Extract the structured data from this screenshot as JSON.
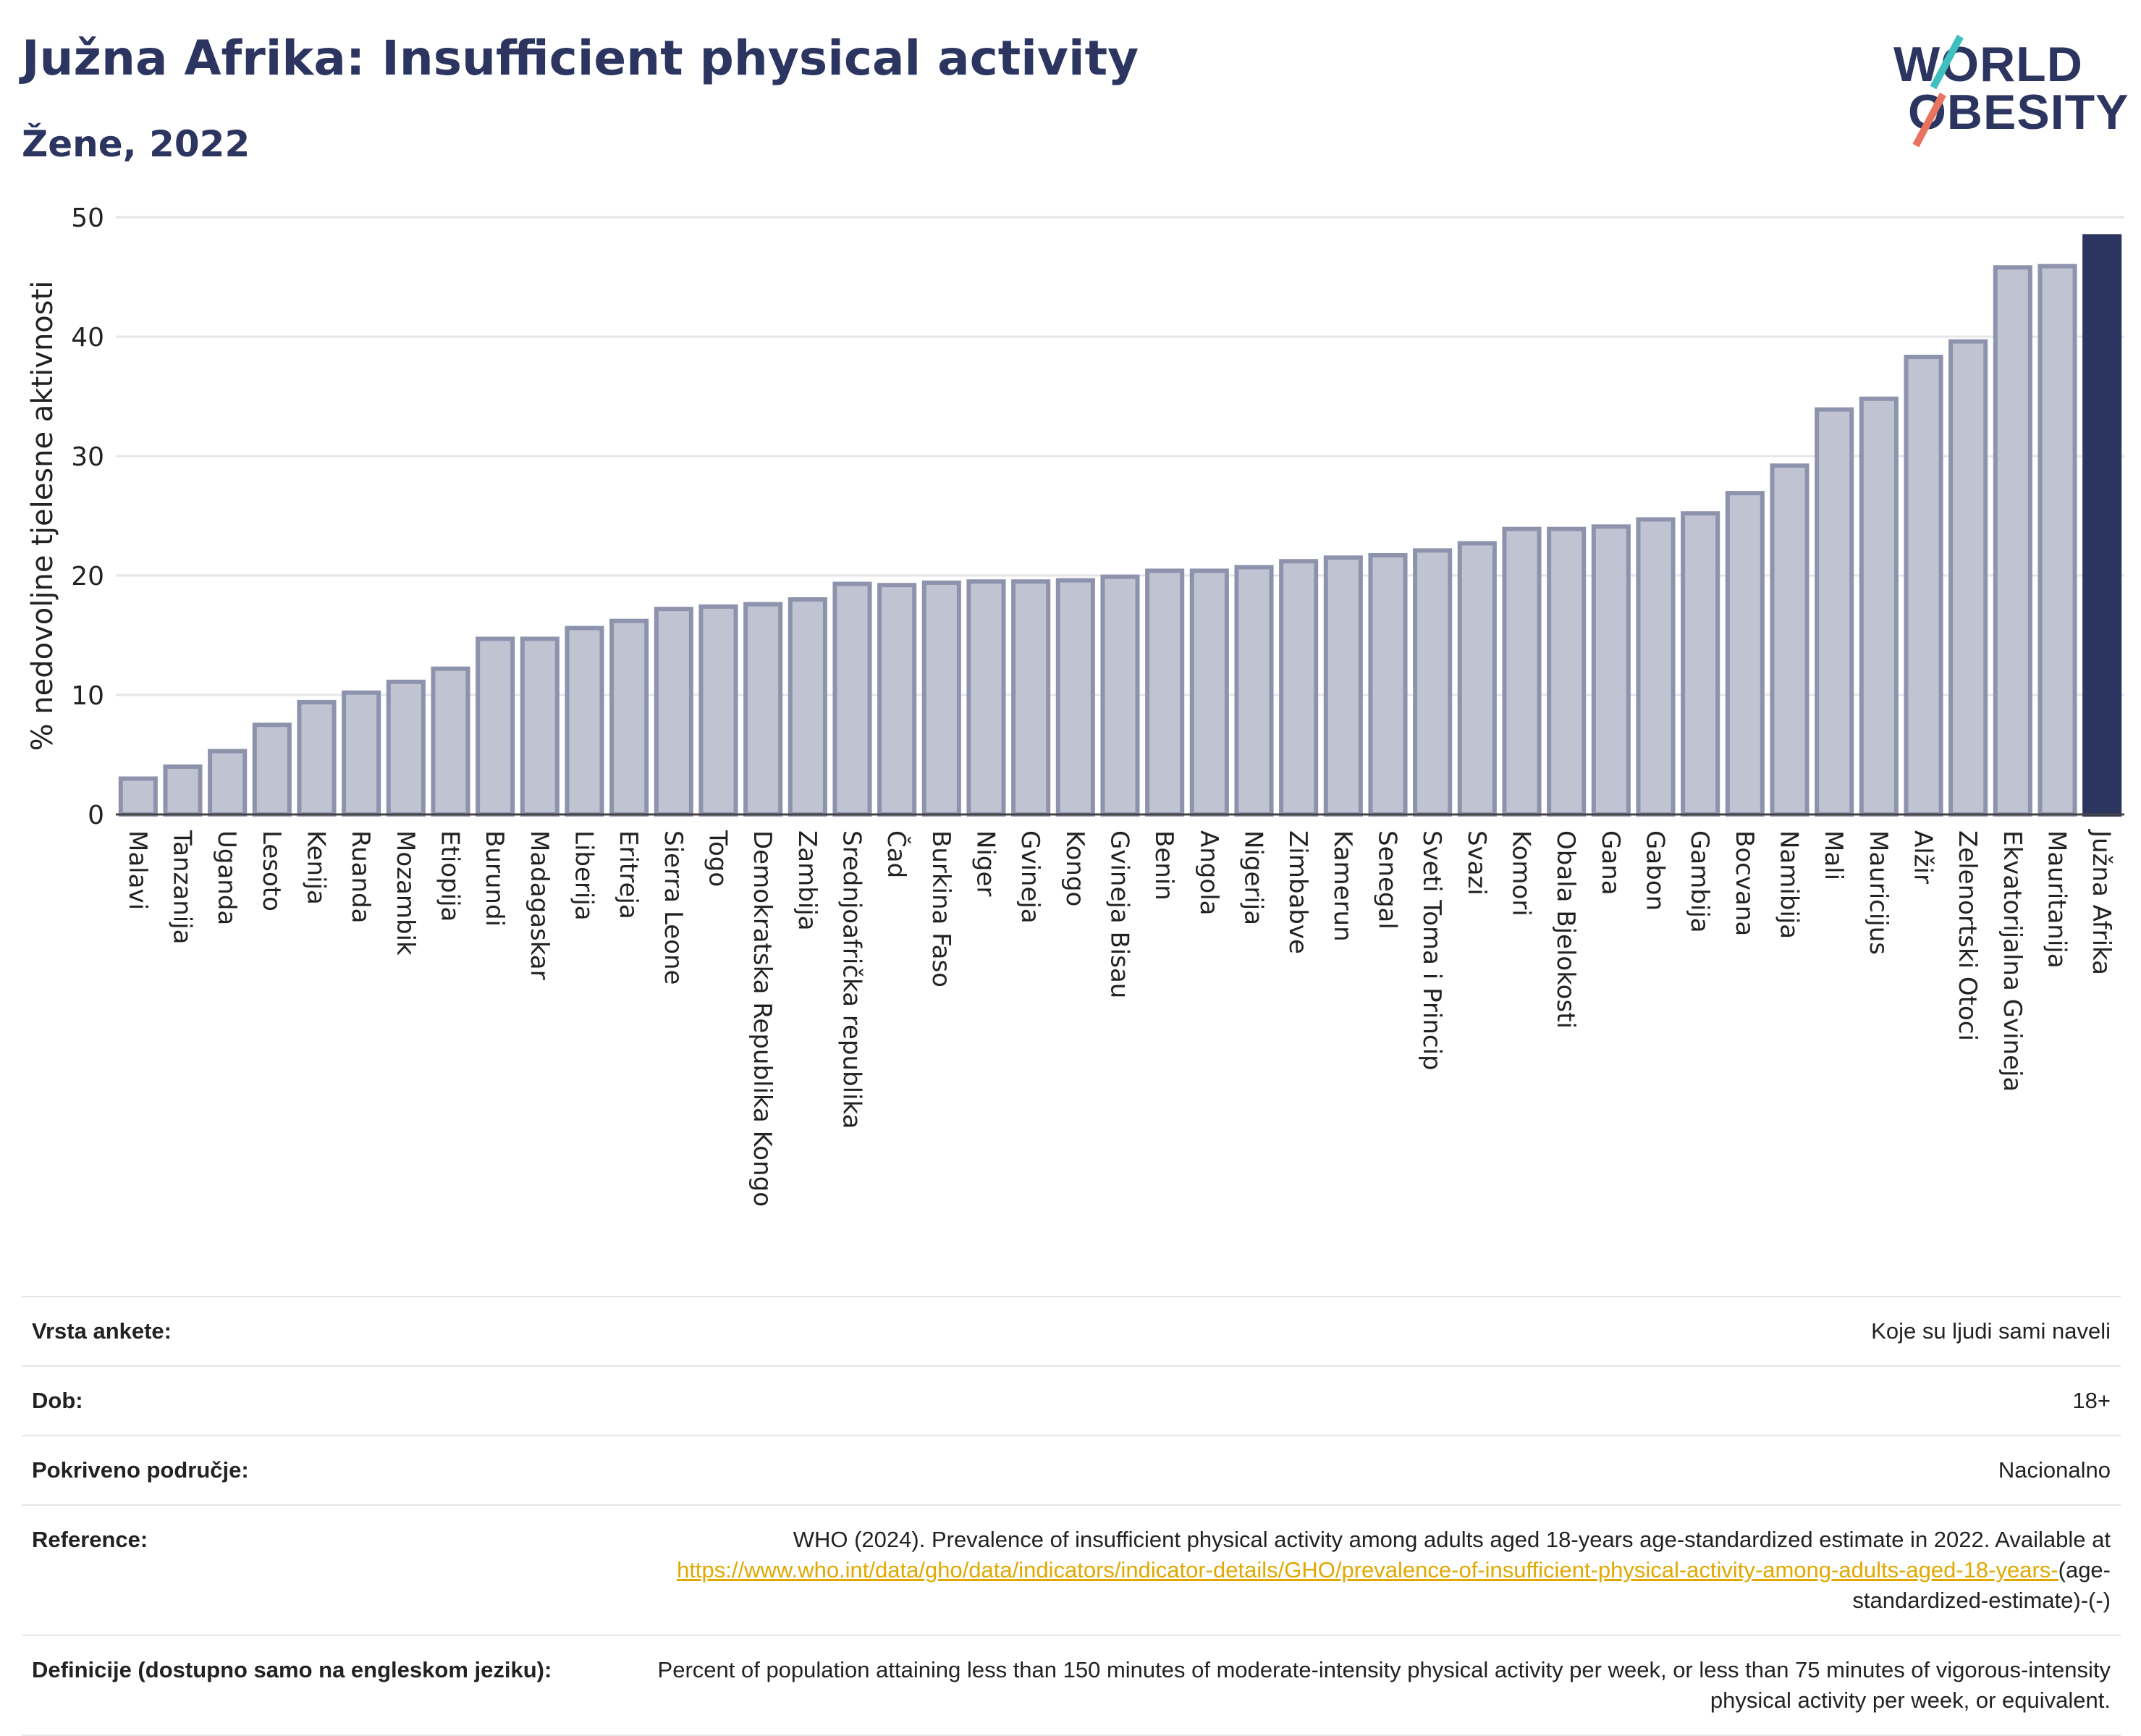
{
  "header": {
    "title": "Južna Afrika: Insufficient physical activity",
    "subtitle": "Žene, 2022"
  },
  "logo": {
    "line1": "WORLD",
    "line2": "OBESITY"
  },
  "colors": {
    "bar_default": "#c0c3d1",
    "bar_default_stroke": "#8e93ad",
    "bar_highlight": "#2b3560",
    "grid": "#e6e6ea",
    "text": "#2b3560",
    "link": "#e0a800"
  },
  "chart_data": {
    "type": "bar",
    "title": "Južna Afrika: Insufficient physical activity",
    "subtitle": "Žene, 2022",
    "ylabel": "% nedovoljne tjelesne aktivnosti",
    "ylim": [
      0,
      50
    ],
    "yticks": [
      0,
      10,
      20,
      30,
      40,
      50
    ],
    "grid": true,
    "highlight": "Južna Afrika",
    "categories": [
      "Malavi",
      "Tanzanija",
      "Uganda",
      "Lesoto",
      "Kenija",
      "Ruanda",
      "Mozambik",
      "Etiopija",
      "Burundi",
      "Madagaskar",
      "Liberija",
      "Eritreja",
      "Sierra Leone",
      "Togo",
      "Demokratska Republika Kongo",
      "Zambija",
      "Srednjoafrička republika",
      "Čad",
      "Burkina Faso",
      "Niger",
      "Gvineja",
      "Kongo",
      "Gvineja Bisau",
      "Benin",
      "Angola",
      "Nigerija",
      "Zimbabve",
      "Kamerun",
      "Senegal",
      "Sveti Toma i Princip",
      "Svazi",
      "Komori",
      "Obala Bjelokosti",
      "Gana",
      "Gabon",
      "Gambija",
      "Bocvana",
      "Namibija",
      "Mali",
      "Mauricijus",
      "Alžir",
      "Zelenortski Otoci",
      "Ekvatorijalna Gvineja",
      "Mauritanija",
      "Južna Afrika"
    ],
    "values": [
      3.0,
      4.0,
      5.3,
      7.5,
      9.4,
      10.2,
      11.1,
      12.2,
      14.7,
      14.7,
      15.6,
      16.2,
      17.2,
      17.4,
      17.6,
      18.0,
      19.3,
      19.2,
      19.4,
      19.5,
      19.5,
      19.6,
      19.9,
      20.4,
      20.4,
      20.7,
      21.2,
      21.5,
      21.7,
      22.1,
      22.7,
      23.9,
      23.9,
      24.1,
      24.7,
      25.2,
      26.9,
      29.2,
      33.9,
      34.8,
      38.3,
      39.6,
      45.8,
      45.9,
      48.4
    ]
  },
  "info_table": {
    "rows": [
      {
        "label": "Vrsta ankete:",
        "value": "Koje su ljudi sami naveli"
      },
      {
        "label": "Dob:",
        "value": "18+"
      },
      {
        "label": "Pokriveno područje:",
        "value": "Nacionalno"
      },
      {
        "label": "Reference:",
        "value": "WHO (2024). Prevalence of insufficient physical activity among adults aged 18-years age-standardized estimate in 2022. Available at ",
        "link": "https://www.who.int/data/gho/data/indicators/indicator-details/GHO/prevalence-of-insufficient-physical-activity-among-adults-aged-18-years-",
        "suffix": "(age-standardized-estimate)-(-)"
      },
      {
        "label": "Definicije (dostupno samo na engleskom jeziku):",
        "value": "Percent of population attaining less than 150 minutes of moderate-intensity physical activity per week, or less than 75 minutes of vigorous-intensity physical activity per week, or equivalent."
      }
    ]
  }
}
